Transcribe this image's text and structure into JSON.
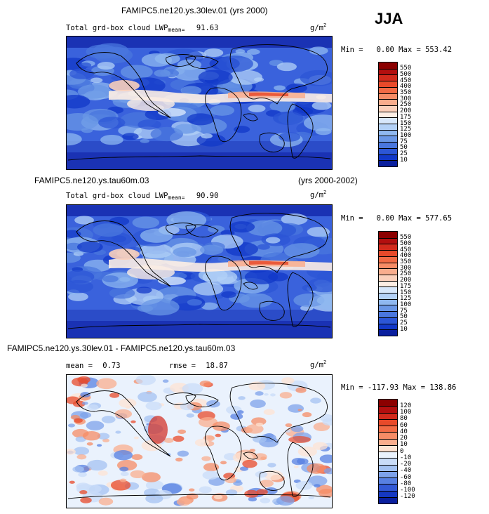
{
  "season": "JJA",
  "panels": [
    {
      "title_left": "FAMIPC5.ne120.ys.30lev.01 (yrs 2000)",
      "title_right": "",
      "field_label": "Total grd-box cloud LWP",
      "mean_label": "mean=",
      "mean_value": "91.63",
      "rmse_label": "",
      "rmse_value": "",
      "units_base": "g/m",
      "units_exp": "2",
      "min_text": "Min =   0.00 Max = 553.42",
      "colorbar_ticks": [
        "550",
        "500",
        "450",
        "400",
        "350",
        "300",
        "250",
        "200",
        "175",
        "150",
        "125",
        "100",
        "75",
        "50",
        "25",
        "10"
      ],
      "colorbar_colors": [
        "#8b0000",
        "#b30f0f",
        "#d22a1c",
        "#e84a2a",
        "#f26b45",
        "#f68c66",
        "#f9ad8d",
        "#fbd0bb",
        "#fdeee4",
        "#d7e7fb",
        "#b3d1f7",
        "#8fb8f0",
        "#6a97e6",
        "#4a77de",
        "#2c56d6",
        "#1238c8",
        "#0a1f9e"
      ],
      "map_type": "lwp"
    },
    {
      "title_left": "FAMIPC5.ne120.ys.tau60m.03",
      "title_right": "(yrs 2000-2002)",
      "field_label": "Total grd-box cloud LWP",
      "mean_label": "mean=",
      "mean_value": "90.90",
      "rmse_label": "",
      "rmse_value": "",
      "units_base": "g/m",
      "units_exp": "2",
      "min_text": "Min =   0.00 Max = 577.65",
      "colorbar_ticks": [
        "550",
        "500",
        "450",
        "400",
        "350",
        "300",
        "250",
        "200",
        "175",
        "150",
        "125",
        "100",
        "75",
        "50",
        "25",
        "10"
      ],
      "colorbar_colors": [
        "#8b0000",
        "#b30f0f",
        "#d22a1c",
        "#e84a2a",
        "#f26b45",
        "#f68c66",
        "#f9ad8d",
        "#fbd0bb",
        "#fdeee4",
        "#d7e7fb",
        "#b3d1f7",
        "#8fb8f0",
        "#6a97e6",
        "#4a77de",
        "#2c56d6",
        "#1238c8",
        "#0a1f9e"
      ],
      "map_type": "lwp"
    },
    {
      "title_left": "FAMIPC5.ne120.ys.30lev.01 - FAMIPC5.ne120.ys.tau60m.03",
      "title_right": "",
      "field_label": "",
      "mean_label": "mean =",
      "mean_value": "0.73",
      "rmse_label": "rmse =",
      "rmse_value": "18.87",
      "units_base": "g/m",
      "units_exp": "2",
      "min_text": "Min = -117.93 Max = 138.86",
      "colorbar_ticks": [
        "120",
        "100",
        "80",
        "60",
        "40",
        "20",
        "10",
        "0",
        "-10",
        "-20",
        "-40",
        "-60",
        "-80",
        "-100",
        "-120"
      ],
      "colorbar_colors": [
        "#8b0000",
        "#b30f0f",
        "#d22a1c",
        "#e84a2a",
        "#f26b45",
        "#f68c66",
        "#f9ad8d",
        "#fde3d3",
        "#eaf2fd",
        "#c9dcf8",
        "#a4c2f2",
        "#7da2ea",
        "#5780e2",
        "#3259d6",
        "#1538c2",
        "#0a1f9e"
      ],
      "map_type": "diff"
    }
  ]
}
